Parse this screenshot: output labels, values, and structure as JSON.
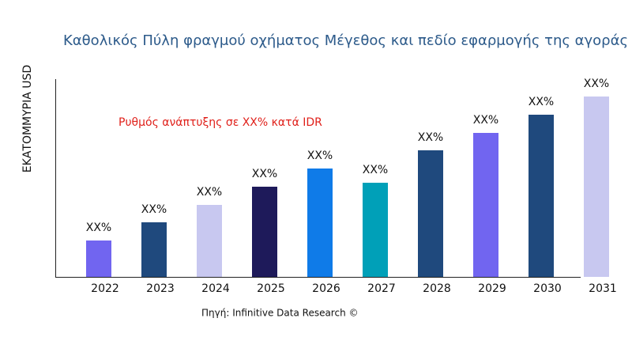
{
  "chart_data": {
    "type": "bar",
    "title": "Καθολικός Πύλη φραγμού οχήματος Μέγεθος και πεδίο εφαρμογής της αγοράς",
    "y_label": "ΕΚΑΤΟΜΜΥΡΙΑ USD",
    "annotation": "Ρυθμός ανάπτυξης σε XX% κατά IDR",
    "source": "Πηγή: Infinitive Data Research ©",
    "categories": [
      "2022",
      "2023",
      "2024",
      "2025",
      "2026",
      "2027",
      "2028",
      "2029",
      "2030",
      "2031"
    ],
    "values": [
      46,
      69,
      91,
      114,
      137,
      119,
      160,
      182,
      205,
      228
    ],
    "value_labels": [
      "XX%",
      "XX%",
      "XX%",
      "XX%",
      "XX%",
      "XX%",
      "XX%",
      "XX%",
      "XX%",
      "XX%"
    ],
    "colors": [
      "#7165f0",
      "#1f497d",
      "#c8c8f0",
      "#1e1a5a",
      "#0f7be8",
      "#00a0b8",
      "#1f497d",
      "#7165f0",
      "#1f497d",
      "#c8c8f0"
    ],
    "ylim": [
      0,
      250
    ]
  }
}
